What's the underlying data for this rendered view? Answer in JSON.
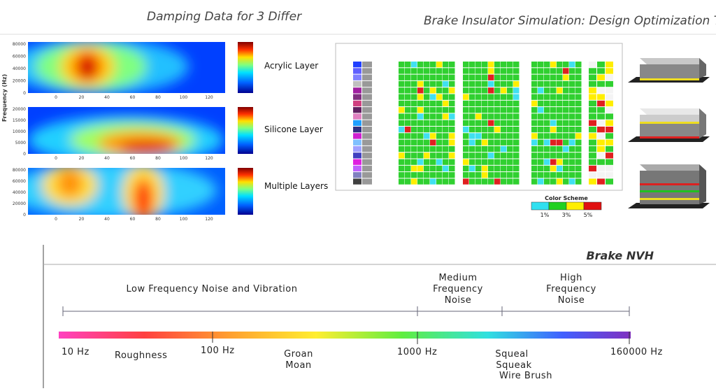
{
  "header": {
    "left_title": "Damping Data for 3 Differ",
    "right_title": "Brake Insulator Simulation: Design Optimization Too"
  },
  "heatmaps": {
    "y_axis_label": "Frequency (Hz)",
    "panels": [
      {
        "label": "Acrylic Layer",
        "y_ticks": [
          "80000",
          "60000",
          "40000",
          "20000",
          "0"
        ],
        "x_ticks": [
          "0",
          "20",
          "40",
          "60",
          "80",
          "100",
          "120"
        ]
      },
      {
        "label": "Silicone Layer",
        "y_ticks": [
          "20000",
          "15000",
          "10000",
          "5000",
          "0"
        ],
        "x_ticks": [
          "0",
          "20",
          "40",
          "60",
          "80",
          "100",
          "120"
        ]
      },
      {
        "label": "Multiple Layers",
        "y_ticks": [
          "80000",
          "60000",
          "40000",
          "20000",
          "0"
        ],
        "x_ticks": [
          "0",
          "20",
          "40",
          "60",
          "80",
          "100",
          "120"
        ]
      }
    ]
  },
  "color_scheme": {
    "title": "Color Scheme",
    "levels": [
      "1%",
      "3%",
      "5%"
    ]
  },
  "nvh": {
    "title": "Brake NVH",
    "low_band": "Low Frequency Noise and Vibration",
    "medium_band": [
      "Medium",
      "Frequency",
      "Noise"
    ],
    "high_band": [
      "High",
      "Frequency",
      "Noise"
    ],
    "frequencies": [
      "10 Hz",
      "100 Hz",
      "1000 Hz",
      "160000 Hz"
    ],
    "roughness": "Roughness",
    "groan": [
      "Groan",
      "Moan"
    ],
    "squeal": [
      "Squeal",
      "Squeak",
      "Wire Brush"
    ]
  }
}
